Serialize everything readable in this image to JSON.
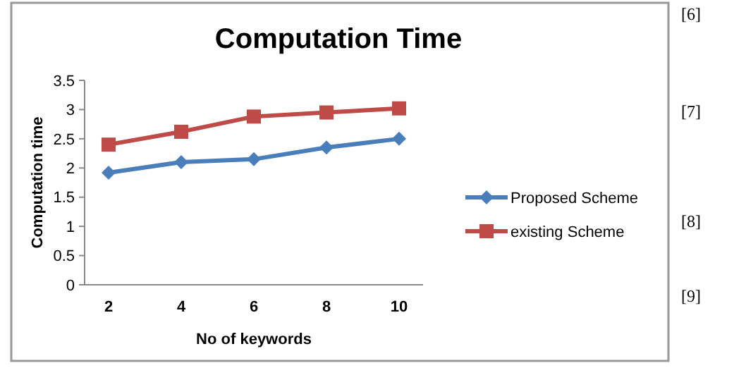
{
  "chart_data": {
    "type": "line",
    "title": "Computation Time",
    "xlabel": "No of keywords",
    "ylabel": "Computation time",
    "categories": [
      "2",
      "4",
      "6",
      "8",
      "10"
    ],
    "series": [
      {
        "name": "Proposed Scheme",
        "color": "#4a7ebb",
        "marker": "diamond",
        "values": [
          1.92,
          2.1,
          2.15,
          2.35,
          2.5
        ]
      },
      {
        "name": "existing Scheme",
        "color": "#be4b48",
        "marker": "square",
        "values": [
          2.4,
          2.62,
          2.88,
          2.95,
          3.02
        ]
      }
    ],
    "ylim": [
      0,
      3.5
    ],
    "yticks": [
      0,
      0.5,
      1,
      1.5,
      2,
      2.5,
      3,
      3.5
    ],
    "grid": false,
    "legend": "right",
    "annotations": [
      "[6]",
      "[7]",
      "[8]",
      "[9]"
    ]
  }
}
